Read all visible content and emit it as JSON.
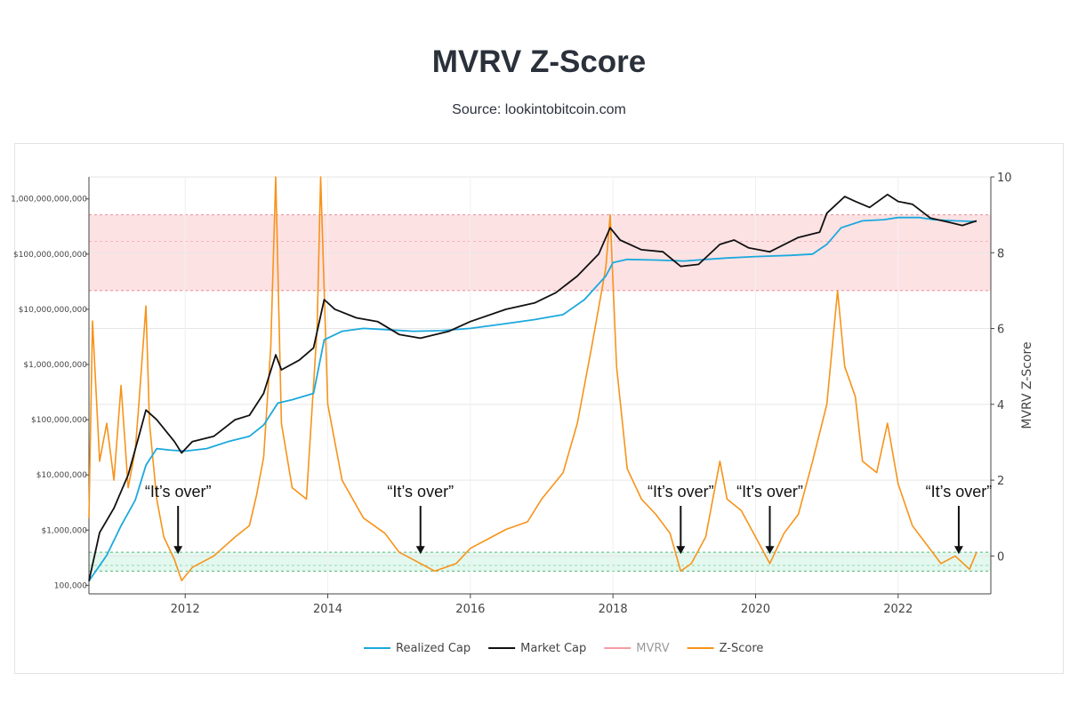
{
  "header": {
    "title": "MVRV Z-Score",
    "subtitle": "Source: lookintobitcoin.com"
  },
  "chart_data": {
    "type": "line",
    "title": "MVRV Z-Score",
    "subtitle": "Source: lookintobitcoin.com",
    "xlabel": "",
    "ylabel_left": "",
    "ylabel_right": "MVRV Z-Score",
    "x_range": [
      2010.65,
      2023.3
    ],
    "x_ticks": [
      "2012",
      "2014",
      "2016",
      "2018",
      "2020",
      "2022"
    ],
    "y_left_scale": "log",
    "y_left_range": [
      70000,
      2500000000000
    ],
    "y_left_ticks": [
      "100,000",
      "$1,000,000",
      "$10,000,000",
      "$100,000,000",
      "$1,000,000,000",
      "$10,000,000,000",
      "$100,000,000,000",
      "1,000,000,000,000"
    ],
    "y_right_range": [
      -1,
      10
    ],
    "y_right_ticks": [
      "0",
      "2",
      "4",
      "6",
      "8",
      "10"
    ],
    "bands": [
      {
        "name": "top",
        "y_from": 7.0,
        "y_to": 9.0,
        "fill": "#fde2e4",
        "border": "#e88c95"
      },
      {
        "name": "bottom",
        "y_from": -0.4,
        "y_to": 0.1,
        "fill": "#e3f8ee",
        "border": "#53b87a"
      }
    ],
    "band_midlines": [
      8.3,
      -0.25
    ],
    "colors": {
      "realized_cap": "#1ba9dd",
      "market_cap": "#111111",
      "mvrv": "#f49ca5",
      "z_score": "#f7931a"
    },
    "legend_position": "bottom-center",
    "legend": [
      {
        "label": "Realized Cap",
        "color": "#1ba9dd",
        "dimmed": false
      },
      {
        "label": "Market Cap",
        "color": "#111111",
        "dimmed": false
      },
      {
        "label": "MVRV",
        "color": "#f49ca5",
        "dimmed": true
      },
      {
        "label": "Z-Score",
        "color": "#f7931a",
        "dimmed": false
      }
    ],
    "series": [
      {
        "name": "Realized Cap",
        "axis": "left",
        "x": [
          2010.65,
          2010.9,
          2011.1,
          2011.3,
          2011.45,
          2011.6,
          2011.8,
          2012.0,
          2012.3,
          2012.6,
          2012.9,
          2013.1,
          2013.3,
          2013.5,
          2013.8,
          2013.95,
          2014.2,
          2014.5,
          2014.8,
          2015.2,
          2015.6,
          2016.0,
          2016.5,
          2016.9,
          2017.3,
          2017.6,
          2017.9,
          2018.0,
          2018.2,
          2018.6,
          2019.0,
          2019.3,
          2019.6,
          2020.0,
          2020.5,
          2020.8,
          2021.0,
          2021.2,
          2021.5,
          2021.8,
          2022.0,
          2022.3,
          2022.5,
          2022.8,
          2023.1
        ],
        "y": [
          120000,
          350000,
          1200000,
          3500000,
          15000000,
          30000000,
          28000000,
          27000000,
          30000000,
          40000000,
          50000000,
          80000000,
          200000000,
          230000000,
          300000000,
          2800000000,
          4000000000,
          4500000000,
          4300000000,
          4000000000,
          4100000000,
          4500000000,
          5500000000,
          6500000000,
          8000000000,
          15000000000,
          40000000000,
          70000000000,
          80000000000,
          78000000000,
          75000000000,
          80000000000,
          85000000000,
          90000000000,
          95000000000,
          100000000000,
          150000000000,
          300000000000,
          400000000000,
          420000000000,
          460000000000,
          460000000000,
          420000000000,
          400000000000,
          390000000000
        ]
      },
      {
        "name": "Market Cap",
        "axis": "left",
        "x": [
          2010.65,
          2010.8,
          2011.0,
          2011.2,
          2011.35,
          2011.45,
          2011.6,
          2011.85,
          2011.95,
          2012.1,
          2012.4,
          2012.7,
          2012.9,
          2013.1,
          2013.27,
          2013.35,
          2013.6,
          2013.8,
          2013.95,
          2014.1,
          2014.4,
          2014.7,
          2015.0,
          2015.3,
          2015.7,
          2016.0,
          2016.5,
          2016.9,
          2017.2,
          2017.5,
          2017.8,
          2017.96,
          2018.1,
          2018.4,
          2018.7,
          2018.95,
          2019.2,
          2019.5,
          2019.7,
          2019.9,
          2020.2,
          2020.6,
          2020.9,
          2021.0,
          2021.25,
          2021.4,
          2021.6,
          2021.85,
          2022.0,
          2022.2,
          2022.45,
          2022.7,
          2022.9,
          2023.1
        ],
        "y": [
          120000,
          900000,
          2500000,
          10000000,
          50000000,
          150000000,
          100000000,
          40000000,
          25000000,
          40000000,
          50000000,
          100000000,
          120000000,
          300000000,
          1500000000,
          800000000,
          1200000000,
          2000000000,
          15000000000,
          10000000000,
          7000000000,
          6000000000,
          3500000000,
          3000000000,
          4000000000,
          6000000000,
          10000000000,
          13000000000,
          20000000000,
          40000000000,
          100000000000,
          300000000000,
          180000000000,
          120000000000,
          110000000000,
          60000000000,
          65000000000,
          150000000000,
          180000000000,
          130000000000,
          110000000000,
          200000000000,
          250000000000,
          550000000000,
          1100000000000,
          900000000000,
          700000000000,
          1200000000000,
          900000000000,
          800000000000,
          450000000000,
          380000000000,
          330000000000,
          400000000000
        ]
      },
      {
        "name": "Z-Score",
        "axis": "right",
        "x": [
          2010.65,
          2010.7,
          2010.8,
          2010.9,
          2011.0,
          2011.1,
          2011.2,
          2011.3,
          2011.35,
          2011.45,
          2011.5,
          2011.6,
          2011.7,
          2011.85,
          2011.95,
          2012.1,
          2012.4,
          2012.7,
          2012.9,
          2013.0,
          2013.1,
          2013.2,
          2013.27,
          2013.35,
          2013.5,
          2013.7,
          2013.85,
          2013.9,
          2014.0,
          2014.2,
          2014.5,
          2014.8,
          2015.0,
          2015.2,
          2015.5,
          2015.8,
          2016.0,
          2016.3,
          2016.5,
          2016.8,
          2017.0,
          2017.3,
          2017.5,
          2017.7,
          2017.9,
          2017.96,
          2018.05,
          2018.2,
          2018.4,
          2018.6,
          2018.8,
          2018.95,
          2019.1,
          2019.3,
          2019.5,
          2019.6,
          2019.8,
          2020.0,
          2020.2,
          2020.4,
          2020.6,
          2020.8,
          2021.0,
          2021.15,
          2021.25,
          2021.4,
          2021.5,
          2021.7,
          2021.85,
          2022.0,
          2022.2,
          2022.4,
          2022.6,
          2022.8,
          2023.0,
          2023.1
        ],
        "y": [
          1.0,
          6.2,
          2.5,
          3.5,
          2.0,
          4.5,
          1.8,
          2.8,
          4.0,
          6.6,
          3.5,
          1.5,
          0.5,
          -0.1,
          -0.65,
          -0.3,
          0.0,
          0.5,
          0.8,
          1.6,
          2.6,
          5.5,
          10.0,
          3.5,
          1.8,
          1.5,
          6.0,
          10.0,
          4.0,
          2.0,
          1.0,
          0.6,
          0.1,
          -0.1,
          -0.4,
          -0.2,
          0.2,
          0.5,
          0.7,
          0.9,
          1.5,
          2.2,
          3.5,
          5.5,
          7.6,
          9.0,
          5.0,
          2.3,
          1.5,
          1.1,
          0.6,
          -0.4,
          -0.2,
          0.5,
          2.5,
          1.5,
          1.2,
          0.5,
          -0.2,
          0.6,
          1.1,
          2.5,
          4.0,
          7.0,
          5.0,
          4.2,
          2.5,
          2.2,
          3.5,
          1.9,
          0.8,
          0.3,
          -0.2,
          0.0,
          -0.35,
          0.1
        ]
      }
    ],
    "annotations": [
      {
        "text": "“It’s over”",
        "x": 2011.9,
        "y": 0.05
      },
      {
        "text": "“It’s over”",
        "x": 2015.3,
        "y": 0.05
      },
      {
        "text": "“It’s over”",
        "x": 2018.95,
        "y": 0.05
      },
      {
        "text": "“It’s over”",
        "x": 2020.2,
        "y": 0.05
      },
      {
        "text": "“It’s over”",
        "x": 2022.85,
        "y": 0.05
      }
    ]
  }
}
